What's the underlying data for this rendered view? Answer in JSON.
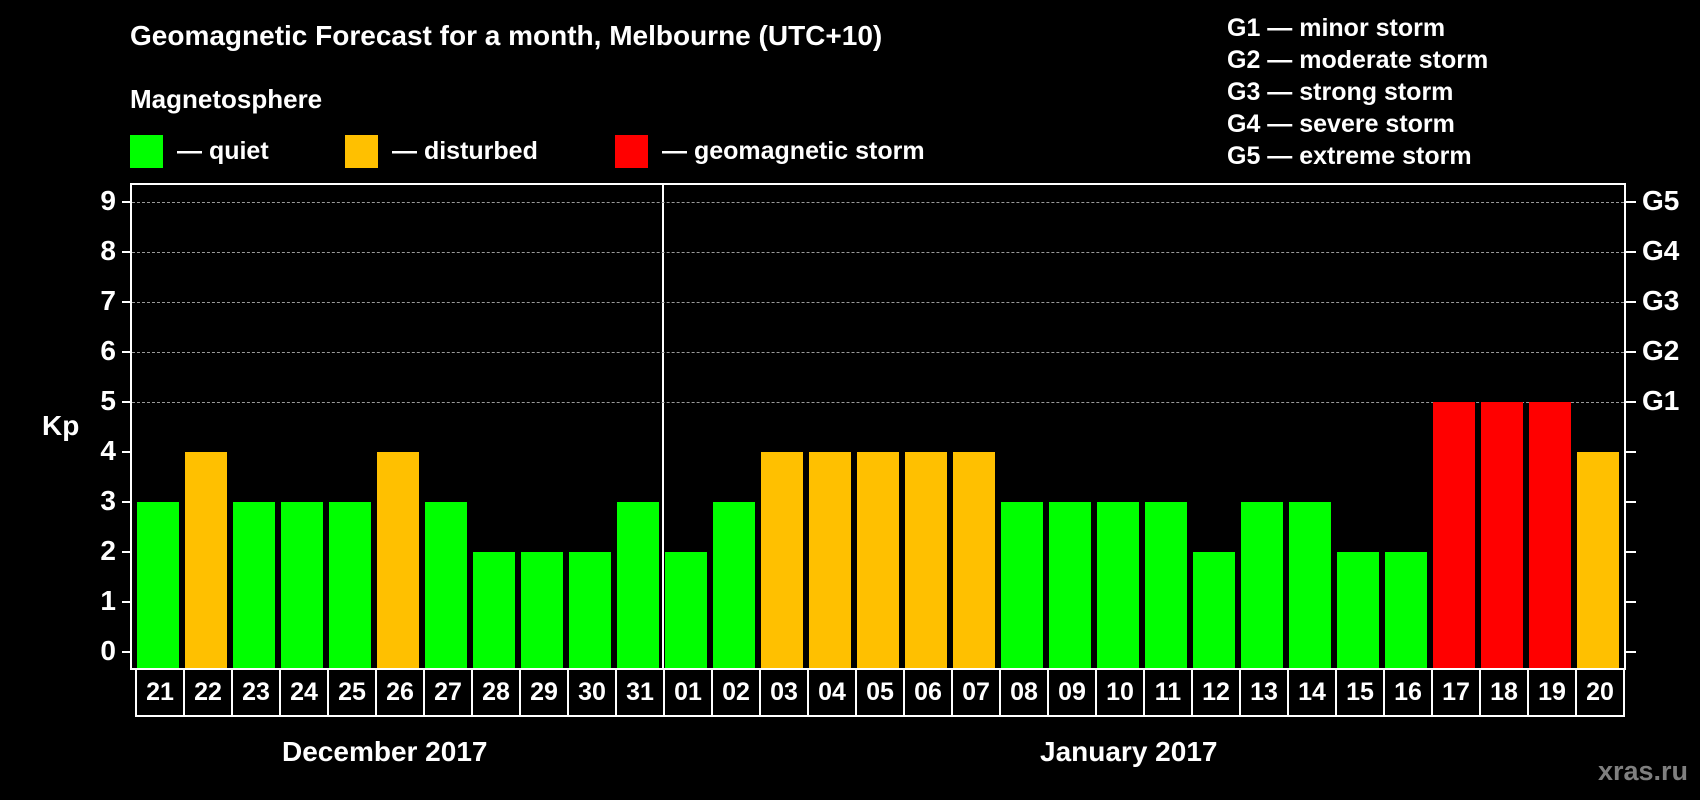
{
  "title": "Geomagnetic Forecast for a month, Melbourne (UTC+10)",
  "subtitle": "Magnetosphere",
  "legend": [
    {
      "label": "— quiet",
      "color": "#00ff00"
    },
    {
      "label": "— disturbed",
      "color": "#ffc000"
    },
    {
      "label": "— geomagnetic storm",
      "color": "#ff0000"
    }
  ],
  "g_scale_legend": [
    "G1 — minor storm",
    "G2 — moderate storm",
    "G3 — strong storm",
    "G4 — severe storm",
    "G5 — extreme storm"
  ],
  "y_axis_label": "Kp",
  "months": [
    "December 2017",
    "January 2017"
  ],
  "watermark": "xras.ru",
  "chart_data": {
    "type": "bar",
    "title": "Geomagnetic Forecast for a month, Melbourne (UTC+10)",
    "xlabel": "",
    "ylabel": "Kp",
    "ylim": [
      0,
      9
    ],
    "yticks": [
      "0",
      "1",
      "2",
      "3",
      "4",
      "5",
      "6",
      "7",
      "8",
      "9"
    ],
    "right_axis_ticks": [
      {
        "kp": 5,
        "label": "G1"
      },
      {
        "kp": 6,
        "label": "G2"
      },
      {
        "kp": 7,
        "label": "G3"
      },
      {
        "kp": 8,
        "label": "G4"
      },
      {
        "kp": 9,
        "label": "G5"
      }
    ],
    "grid": "dashed horizontal at Kp 5–9",
    "categories": [
      "21",
      "22",
      "23",
      "24",
      "25",
      "26",
      "27",
      "28",
      "29",
      "30",
      "31",
      "01",
      "02",
      "03",
      "04",
      "05",
      "06",
      "07",
      "08",
      "09",
      "10",
      "11",
      "12",
      "13",
      "14",
      "15",
      "16",
      "17",
      "18",
      "19",
      "20"
    ],
    "month_groups": [
      {
        "label": "December 2017",
        "days": [
          "21",
          "22",
          "23",
          "24",
          "25",
          "26",
          "27",
          "28",
          "29",
          "30",
          "31"
        ]
      },
      {
        "label": "January 2017",
        "days": [
          "01",
          "02",
          "03",
          "04",
          "05",
          "06",
          "07",
          "08",
          "09",
          "10",
          "11",
          "12",
          "13",
          "14",
          "15",
          "16",
          "17",
          "18",
          "19",
          "20"
        ]
      }
    ],
    "values": [
      3,
      4,
      3,
      3,
      3,
      4,
      3,
      2,
      2,
      2,
      3,
      2,
      3,
      4,
      4,
      4,
      4,
      4,
      3,
      3,
      3,
      3,
      2,
      3,
      3,
      2,
      2,
      5,
      5,
      5,
      4
    ],
    "status": [
      "quiet",
      "disturbed",
      "quiet",
      "quiet",
      "quiet",
      "disturbed",
      "quiet",
      "quiet",
      "quiet",
      "quiet",
      "quiet",
      "quiet",
      "quiet",
      "disturbed",
      "disturbed",
      "disturbed",
      "disturbed",
      "disturbed",
      "quiet",
      "quiet",
      "quiet",
      "quiet",
      "quiet",
      "quiet",
      "quiet",
      "quiet",
      "quiet",
      "storm",
      "storm",
      "storm",
      "disturbed"
    ],
    "colors": {
      "quiet": "#00ff00",
      "disturbed": "#ffc000",
      "storm": "#ff0000"
    },
    "legend": [
      "quiet",
      "disturbed",
      "geomagnetic storm"
    ]
  }
}
